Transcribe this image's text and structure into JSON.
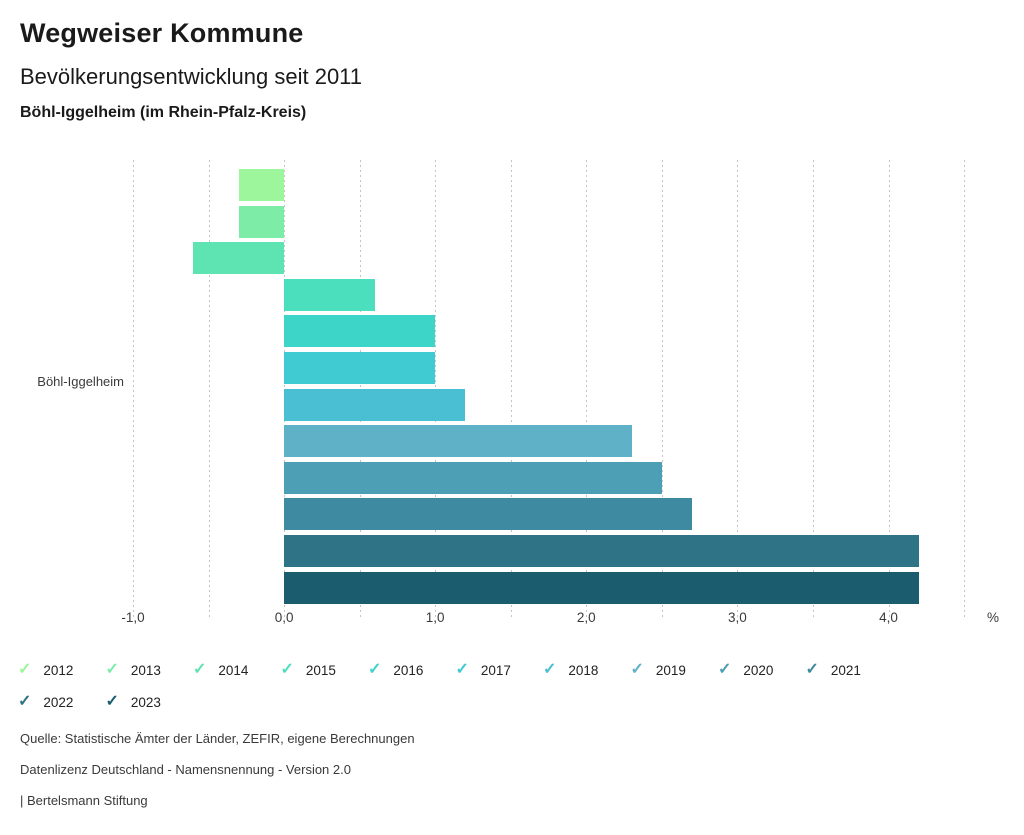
{
  "header": {
    "title": "Wegweiser Kommune",
    "subtitle": "Bevölkerungsentwicklung seit 2011",
    "location": "Böhl-Iggelheim (im Rhein-Pfalz-Kreis)"
  },
  "chart_data": {
    "type": "bar",
    "orientation": "horizontal",
    "title": "Bevölkerungsentwicklung seit 2011",
    "category_label": "Böhl-Iggelheim",
    "xlabel": "",
    "ylabel": "",
    "unit_label": "%",
    "xlim": [
      -1.0,
      4.5
    ],
    "gridline_step": 0.5,
    "grid": "dotted-vertical",
    "legend_position": "bottom",
    "x_ticks": [
      {
        "value": -1,
        "label": "-1,0"
      },
      {
        "value": 0,
        "label": "0,0"
      },
      {
        "value": 1,
        "label": "1,0"
      },
      {
        "value": 2,
        "label": "2,0"
      },
      {
        "value": 3,
        "label": "3,0"
      },
      {
        "value": 4,
        "label": "4,0"
      }
    ],
    "bars": [
      {
        "year": "2012",
        "value": -0.3,
        "color": "#9df59c"
      },
      {
        "year": "2013",
        "value": -0.3,
        "color": "#7deca6"
      },
      {
        "year": "2014",
        "value": -0.6,
        "color": "#5de4b2"
      },
      {
        "year": "2015",
        "value": 0.6,
        "color": "#4cdfbd"
      },
      {
        "year": "2016",
        "value": 1.0,
        "color": "#3ed5c9"
      },
      {
        "year": "2017",
        "value": 1.0,
        "color": "#3fcbd1"
      },
      {
        "year": "2018",
        "value": 1.2,
        "color": "#4abed2"
      },
      {
        "year": "2019",
        "value": 2.3,
        "color": "#5fb1c8"
      },
      {
        "year": "2020",
        "value": 2.5,
        "color": "#4c9fb4"
      },
      {
        "year": "2021",
        "value": 2.7,
        "color": "#3e8aa0"
      },
      {
        "year": "2022",
        "value": 4.2,
        "color": "#2e7386"
      },
      {
        "year": "2023",
        "value": 4.2,
        "color": "#1b5c6f"
      }
    ]
  },
  "legend": {
    "check_icon": "✓"
  },
  "footer": {
    "source": "Quelle: Statistische Ämter der Länder, ZEFIR, eigene Berechnungen",
    "license": "Datenlizenz Deutschland - Namensnennung - Version 2.0",
    "attribution": "| Bertelsmann Stiftung"
  },
  "colors": {
    "grid": "#c4c4c4",
    "axis_text": "#3a3a3a"
  }
}
